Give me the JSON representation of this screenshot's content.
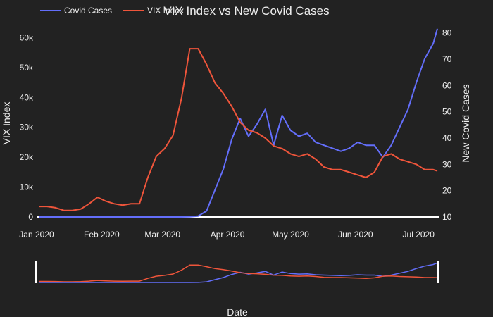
{
  "chart_data": {
    "type": "line",
    "title": "VIX Index vs New Covid Cases",
    "xlabel": "Date",
    "ylabel": "VIX Index",
    "y2label": "New Covid Cases",
    "x": [
      "2020-01-02",
      "2020-01-06",
      "2020-01-10",
      "2020-01-14",
      "2020-01-18",
      "2020-01-22",
      "2020-01-26",
      "2020-01-30",
      "2020-02-03",
      "2020-02-07",
      "2020-02-11",
      "2020-02-15",
      "2020-02-19",
      "2020-02-23",
      "2020-02-27",
      "2020-03-02",
      "2020-03-06",
      "2020-03-10",
      "2020-03-14",
      "2020-03-18",
      "2020-03-22",
      "2020-03-26",
      "2020-03-30",
      "2020-04-03",
      "2020-04-07",
      "2020-04-11",
      "2020-04-15",
      "2020-04-19",
      "2020-04-23",
      "2020-04-27",
      "2020-05-01",
      "2020-05-05",
      "2020-05-09",
      "2020-05-13",
      "2020-05-17",
      "2020-05-21",
      "2020-05-25",
      "2020-05-29",
      "2020-06-02",
      "2020-06-06",
      "2020-06-10",
      "2020-06-14",
      "2020-06-18",
      "2020-06-22",
      "2020-06-26",
      "2020-06-30",
      "2020-07-04",
      "2020-07-08",
      "2020-07-10"
    ],
    "series": [
      {
        "name": "Covid Cases",
        "axis": "y",
        "color": "#636efa",
        "values": [
          0,
          0,
          0,
          0,
          0,
          0,
          0,
          0,
          0,
          0,
          0,
          0,
          0,
          0,
          0,
          0,
          0,
          0,
          50,
          300,
          2000,
          9000,
          16000,
          26000,
          33000,
          27000,
          31000,
          36000,
          24000,
          34000,
          29000,
          27000,
          28000,
          25000,
          24000,
          23000,
          22000,
          23000,
          25000,
          24000,
          24000,
          20000,
          24000,
          30000,
          36000,
          45000,
          53000,
          58000,
          63000
        ]
      },
      {
        "name": "VIX Index",
        "axis": "y2",
        "color": "#ef553b",
        "values": [
          14,
          14,
          13.5,
          12.5,
          12.5,
          13,
          15,
          17.5,
          16,
          15,
          14.5,
          15,
          15,
          25,
          33,
          36,
          41,
          55,
          74,
          74,
          68,
          61,
          57,
          52,
          46,
          43,
          42,
          40,
          37,
          36,
          34,
          33,
          34,
          32,
          29,
          28,
          28,
          27,
          26,
          25,
          27,
          33,
          34,
          32,
          31,
          30,
          28,
          28,
          27.5
        ]
      }
    ],
    "xlim": [
      "2020-01-01",
      "2020-07-11"
    ],
    "ylim": [
      0,
      66000
    ],
    "y2lim": [
      10,
      85
    ],
    "xticks": [
      "Jan 2020",
      "Feb 2020",
      "Mar 2020",
      "Apr 2020",
      "May 2020",
      "Jun 2020",
      "Jul 2020"
    ],
    "xtick_dates": [
      "2020-01-01",
      "2020-02-01",
      "2020-03-01",
      "2020-04-01",
      "2020-05-01",
      "2020-06-01",
      "2020-07-01"
    ],
    "yticks": [
      "0",
      "10k",
      "20k",
      "30k",
      "40k",
      "50k",
      "60k"
    ],
    "ytick_values": [
      0,
      10000,
      20000,
      30000,
      40000,
      50000,
      60000
    ],
    "y2ticks": [
      "10",
      "20",
      "30",
      "40",
      "50",
      "60",
      "70",
      "80"
    ],
    "y2tick_values": [
      10,
      20,
      30,
      40,
      50,
      60,
      70,
      80
    ],
    "grid": false,
    "legend": "top-left",
    "rangeslider": true
  }
}
